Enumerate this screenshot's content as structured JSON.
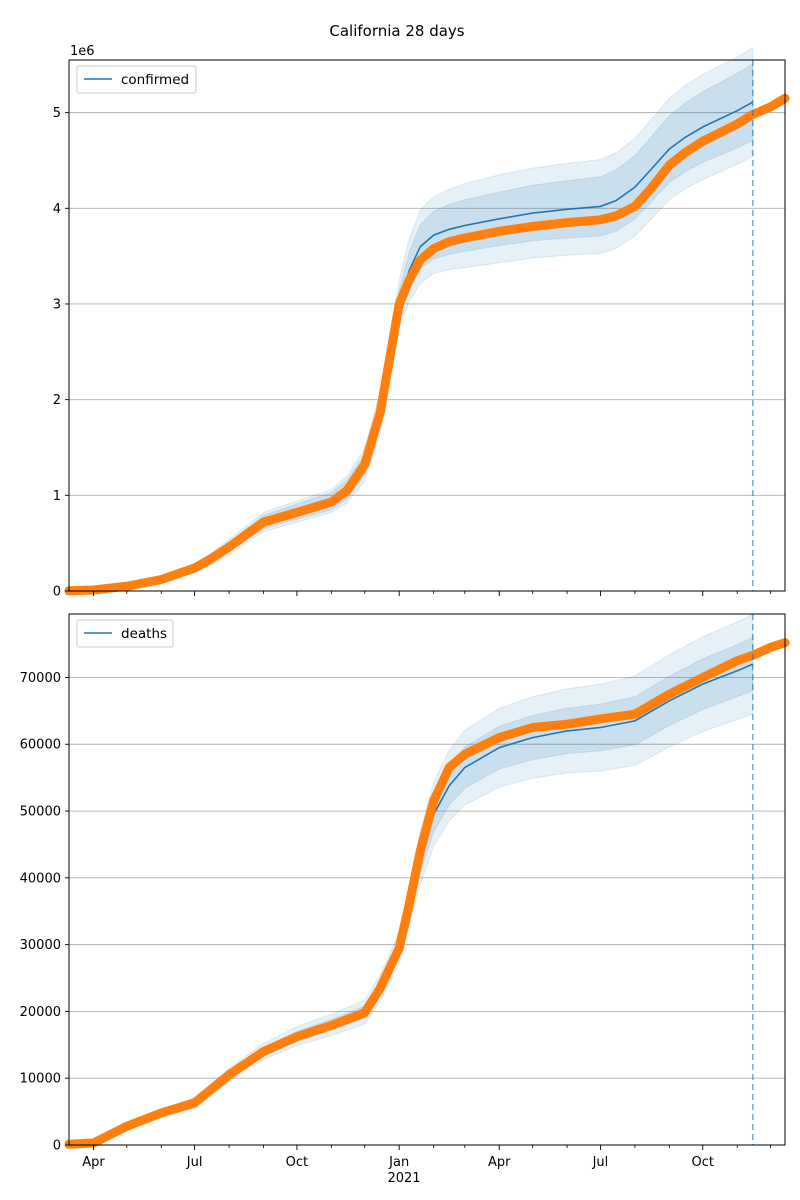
{
  "figure": {
    "title": "California 28 days"
  },
  "chart_data": [
    {
      "type": "line",
      "series_name": "confirmed",
      "offset_label": "1e6",
      "y_scale": 1000000,
      "ylim": [
        0,
        5.55
      ],
      "yticks": [
        0,
        1,
        2,
        3,
        4,
        5
      ],
      "ytick_labels": [
        "0",
        "1",
        "2",
        "3",
        "4",
        "5"
      ],
      "grid": "y",
      "legend": {
        "placement": "upper-left",
        "entries": [
          "confirmed"
        ]
      },
      "xlim": [
        "2020-03-10",
        "2021-12-14"
      ],
      "xticks": [
        "2020-04-01",
        "2020-07-01",
        "2020-10-01",
        "2021-01-01",
        "2021-04-01",
        "2021-07-01",
        "2021-10-01"
      ],
      "xtick_labels": [
        "Apr",
        "Jul",
        "Oct",
        "Jan",
        "Apr",
        "Jul",
        "Oct"
      ],
      "xticks_minor": [
        "2020-05-01",
        "2020-06-01",
        "2020-08-01",
        "2020-09-01",
        "2020-11-01",
        "2020-12-01",
        "2021-02-01",
        "2021-03-01",
        "2021-05-01",
        "2021-06-01",
        "2021-08-01",
        "2021-09-01",
        "2021-11-01",
        "2021-12-01"
      ],
      "forecast_start": "2021-11-15",
      "observed": {
        "x": [
          "2020-03-10",
          "2020-04-01",
          "2020-05-01",
          "2020-06-01",
          "2020-07-01",
          "2020-07-15",
          "2020-08-01",
          "2020-08-20",
          "2020-09-01",
          "2020-10-01",
          "2020-11-01",
          "2020-11-15",
          "2020-12-01",
          "2020-12-15",
          "2021-01-01",
          "2021-01-10",
          "2021-01-20",
          "2021-02-01",
          "2021-02-15",
          "2021-03-01",
          "2021-04-01",
          "2021-05-01",
          "2021-06-01",
          "2021-07-01",
          "2021-07-15",
          "2021-08-01",
          "2021-08-15",
          "2021-09-01",
          "2021-09-15",
          "2021-10-01",
          "2021-11-01",
          "2021-11-15",
          "2021-12-01",
          "2021-12-14"
        ],
        "y": [
          0.002,
          0.01,
          0.05,
          0.12,
          0.24,
          0.33,
          0.46,
          0.62,
          0.72,
          0.82,
          0.93,
          1.05,
          1.32,
          1.87,
          3.0,
          3.25,
          3.46,
          3.58,
          3.65,
          3.69,
          3.76,
          3.81,
          3.85,
          3.88,
          3.92,
          4.02,
          4.2,
          4.45,
          4.58,
          4.7,
          4.88,
          4.98,
          5.06,
          5.15
        ]
      },
      "forecast": {
        "x": [
          "2020-03-10",
          "2020-04-01",
          "2020-05-01",
          "2020-06-01",
          "2020-07-01",
          "2020-07-15",
          "2020-08-01",
          "2020-08-20",
          "2020-09-01",
          "2020-10-01",
          "2020-11-01",
          "2020-11-15",
          "2020-12-01",
          "2020-12-15",
          "2021-01-01",
          "2021-01-10",
          "2021-01-20",
          "2021-02-01",
          "2021-02-15",
          "2021-03-01",
          "2021-04-01",
          "2021-05-01",
          "2021-06-01",
          "2021-07-01",
          "2021-07-15",
          "2021-08-01",
          "2021-08-15",
          "2021-09-01",
          "2021-09-15",
          "2021-10-01",
          "2021-11-01",
          "2021-11-15"
        ],
        "y": [
          0.002,
          0.01,
          0.05,
          0.12,
          0.24,
          0.33,
          0.46,
          0.62,
          0.72,
          0.83,
          0.94,
          1.06,
          1.32,
          1.87,
          3.0,
          3.35,
          3.6,
          3.72,
          3.78,
          3.82,
          3.89,
          3.95,
          3.99,
          4.02,
          4.08,
          4.22,
          4.4,
          4.62,
          4.74,
          4.85,
          5.02,
          5.11
        ],
        "band_inner": [
          0.002,
          0.003,
          0.01,
          0.02,
          0.03,
          0.04,
          0.05,
          0.06,
          0.07,
          0.08,
          0.09,
          0.1,
          0.11,
          0.13,
          0.15,
          0.19,
          0.23,
          0.25,
          0.26,
          0.27,
          0.28,
          0.29,
          0.3,
          0.31,
          0.32,
          0.33,
          0.34,
          0.35,
          0.36,
          0.37,
          0.39,
          0.4
        ],
        "band_outer": [
          0.004,
          0.006,
          0.02,
          0.04,
          0.05,
          0.06,
          0.08,
          0.09,
          0.1,
          0.11,
          0.12,
          0.14,
          0.17,
          0.22,
          0.25,
          0.33,
          0.38,
          0.4,
          0.42,
          0.44,
          0.46,
          0.47,
          0.48,
          0.49,
          0.5,
          0.51,
          0.52,
          0.53,
          0.54,
          0.55,
          0.56,
          0.57
        ]
      }
    },
    {
      "type": "line",
      "series_name": "deaths",
      "offset_label": "",
      "y_scale": 1,
      "ylim": [
        0,
        79500
      ],
      "yticks": [
        0,
        10000,
        20000,
        30000,
        40000,
        50000,
        60000,
        70000
      ],
      "ytick_labels": [
        "0",
        "10000",
        "20000",
        "30000",
        "40000",
        "50000",
        "60000",
        "70000"
      ],
      "grid": "y",
      "legend": {
        "placement": "upper-left",
        "entries": [
          "deaths"
        ]
      },
      "xlim": [
        "2020-03-10",
        "2021-12-14"
      ],
      "xticks": [
        "2020-04-01",
        "2020-07-01",
        "2020-10-01",
        "2021-01-01",
        "2021-04-01",
        "2021-07-01",
        "2021-10-01"
      ],
      "xtick_labels": [
        "Apr",
        "Jul",
        "Oct",
        "Jan",
        "Apr",
        "Jul",
        "Oct"
      ],
      "xticks_minor": [
        "2020-05-01",
        "2020-06-01",
        "2020-08-01",
        "2020-09-01",
        "2020-11-01",
        "2020-12-01",
        "2021-02-01",
        "2021-03-01",
        "2021-05-01",
        "2021-06-01",
        "2021-08-01",
        "2021-09-01",
        "2021-11-01",
        "2021-12-01"
      ],
      "year_label": "2021",
      "forecast_start": "2021-11-15",
      "observed": {
        "x": [
          "2020-03-10",
          "2020-04-01",
          "2020-05-01",
          "2020-06-01",
          "2020-07-01",
          "2020-08-01",
          "2020-09-01",
          "2020-10-01",
          "2020-11-01",
          "2020-12-01",
          "2020-12-15",
          "2021-01-01",
          "2021-01-10",
          "2021-01-20",
          "2021-02-01",
          "2021-02-15",
          "2021-03-01",
          "2021-04-01",
          "2021-05-01",
          "2021-06-01",
          "2021-07-01",
          "2021-08-01",
          "2021-09-01",
          "2021-10-01",
          "2021-11-01",
          "2021-11-15",
          "2021-12-01",
          "2021-12-14"
        ],
        "y": [
          100,
          300,
          2800,
          4800,
          6300,
          10500,
          14000,
          16200,
          17900,
          19800,
          23500,
          29500,
          36000,
          44000,
          51500,
          56500,
          58500,
          61000,
          62500,
          63000,
          63800,
          64500,
          67500,
          70000,
          72500,
          73300,
          74500,
          75200
        ]
      },
      "forecast": {
        "x": [
          "2020-03-10",
          "2020-04-01",
          "2020-05-01",
          "2020-06-01",
          "2020-07-01",
          "2020-08-01",
          "2020-09-01",
          "2020-10-01",
          "2020-11-01",
          "2020-12-01",
          "2020-12-15",
          "2021-01-01",
          "2021-01-10",
          "2021-01-20",
          "2021-02-01",
          "2021-02-15",
          "2021-03-01",
          "2021-04-01",
          "2021-05-01",
          "2021-06-01",
          "2021-07-01",
          "2021-08-01",
          "2021-09-01",
          "2021-10-01",
          "2021-11-01",
          "2021-11-15"
        ],
        "y": [
          100,
          300,
          2800,
          4800,
          6300,
          10500,
          14000,
          16300,
          18000,
          19900,
          23500,
          29500,
          36000,
          43000,
          49500,
          53800,
          56500,
          59500,
          61000,
          62000,
          62500,
          63500,
          66500,
          69000,
          71000,
          72000
        ],
        "band_inner": [
          50,
          100,
          200,
          300,
          400,
          500,
          600,
          700,
          800,
          900,
          1000,
          1200,
          1600,
          2200,
          2600,
          2900,
          3100,
          3200,
          3300,
          3400,
          3500,
          3600,
          3700,
          3800,
          3900,
          4000
        ],
        "band_outer": [
          100,
          200,
          400,
          600,
          800,
          1000,
          1200,
          1400,
          1600,
          1800,
          2000,
          2300,
          3000,
          4000,
          4800,
          5300,
          5600,
          5900,
          6100,
          6300,
          6500,
          6700,
          6900,
          7100,
          7300,
          7500
        ]
      }
    }
  ]
}
